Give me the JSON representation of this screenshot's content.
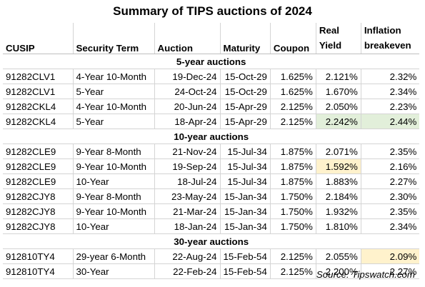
{
  "title": "Summary of TIPS auctions of 2024",
  "headers": {
    "cusip": "CUSIP",
    "term": "Security Term",
    "auction": "Auction",
    "maturity": "Maturity",
    "coupon": "Coupon",
    "real_yield_1": "Real",
    "real_yield_2": "Yield",
    "breakeven_1": "Inflation",
    "breakeven_2": "breakeven"
  },
  "sections": {
    "five": "5-year auctions",
    "ten": "10-year auctions",
    "thirty": "30-year auctions"
  },
  "rows": [
    {
      "cusip": "91282CLV1",
      "term": "4-Year 10-Month",
      "auction": "19-Dec-24",
      "maturity": "15-Oct-29",
      "coupon": "1.625%",
      "real_yield": "2.121%",
      "breakeven": "2.32%"
    },
    {
      "cusip": "91282CLV1",
      "term": "5-Year",
      "auction": "24-Oct-24",
      "maturity": "15-Oct-29",
      "coupon": "1.625%",
      "real_yield": "1.670%",
      "breakeven": "2.34%"
    },
    {
      "cusip": "91282CKL4",
      "term": "4-Year 10-Month",
      "auction": "20-Jun-24",
      "maturity": "15-Apr-29",
      "coupon": "2.125%",
      "real_yield": "2.050%",
      "breakeven": "2.23%"
    },
    {
      "cusip": "91282CKL4",
      "term": "5-Year",
      "auction": "18-Apr-24",
      "maturity": "15-Apr-29",
      "coupon": "2.125%",
      "real_yield": "2.242%",
      "breakeven": "2.44%"
    },
    {
      "cusip": "91282CLE9",
      "term": "9-Year 8-Month",
      "auction": "21-Nov-24",
      "maturity": "15-Jul-34",
      "coupon": "1.875%",
      "real_yield": "2.071%",
      "breakeven": "2.35%"
    },
    {
      "cusip": "91282CLE9",
      "term": "9-Year 10-Month",
      "auction": "19-Sep-24",
      "maturity": "15-Jul-34",
      "coupon": "1.875%",
      "real_yield": "1.592%",
      "breakeven": "2.16%"
    },
    {
      "cusip": "91282CLE9",
      "term": "10-Year",
      "auction": "18-Jul-24",
      "maturity": "15-Jul-34",
      "coupon": "1.875%",
      "real_yield": "1.883%",
      "breakeven": "2.27%"
    },
    {
      "cusip": "91282CJY8",
      "term": "9-Year 8-Month",
      "auction": "23-May-24",
      "maturity": "15-Jan-34",
      "coupon": "1.750%",
      "real_yield": "2.184%",
      "breakeven": "2.30%"
    },
    {
      "cusip": "91282CJY8",
      "term": "9-Year 10-Month",
      "auction": "21-Mar-24",
      "maturity": "15-Jan-34",
      "coupon": "1.750%",
      "real_yield": "1.932%",
      "breakeven": "2.35%"
    },
    {
      "cusip": "91282CJY8",
      "term": "10-Year",
      "auction": "18-Jan-24",
      "maturity": "15-Jan-34",
      "coupon": "1.750%",
      "real_yield": "1.810%",
      "breakeven": "2.34%"
    },
    {
      "cusip": "912810TY4",
      "term": "29-year 6-Month",
      "auction": "22-Aug-24",
      "maturity": "15-Feb-54",
      "coupon": "2.125%",
      "real_yield": "2.055%",
      "breakeven": "2.09%"
    },
    {
      "cusip": "912810TY4",
      "term": "30-Year",
      "auction": "22-Feb-24",
      "maturity": "15-Feb-54",
      "coupon": "2.125%",
      "real_yield": "2.200%",
      "breakeven": "2.27%"
    }
  ],
  "highlight_colors": {
    "green": "#e2efda",
    "yellow": "#fff2cc"
  },
  "source": "Source: Tipswatch.com"
}
